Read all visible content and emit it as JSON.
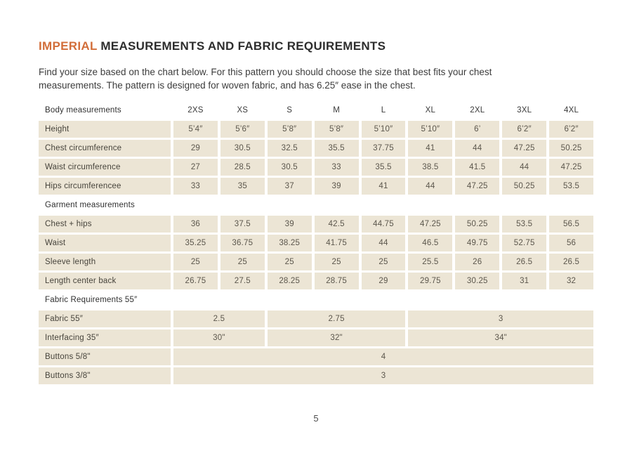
{
  "colors": {
    "accent": "#d26e3a",
    "row_bg": "#ece5d5"
  },
  "page": {
    "title_accent": "IMPERIAL",
    "title_rest": " MEASUREMENTS AND FABRIC REQUIREMENTS",
    "intro": "Find your size based on the chart below. For this pattern you should choose the size that best fits your chest measurements. The pattern is designed for woven fabric, and has 6.25″ ease in the chest.",
    "page_number": "5"
  },
  "table": {
    "sizes": [
      "2XS",
      "XS",
      "S",
      "M",
      "L",
      "XL",
      "2XL",
      "3XL",
      "4XL"
    ],
    "sections": [
      {
        "header": "Body measurements",
        "rows": [
          {
            "label": "Height",
            "cells": [
              {
                "v": "5’4″",
                "s": 1
              },
              {
                "v": "5’6″",
                "s": 1
              },
              {
                "v": "5’8″",
                "s": 1
              },
              {
                "v": "5’8″",
                "s": 1
              },
              {
                "v": "5’10″",
                "s": 1
              },
              {
                "v": "5’10″",
                "s": 1
              },
              {
                "v": "6’",
                "s": 1
              },
              {
                "v": "6’2″",
                "s": 1
              },
              {
                "v": "6’2″",
                "s": 1
              }
            ]
          },
          {
            "label": "Chest circumference",
            "cells": [
              {
                "v": "29",
                "s": 1
              },
              {
                "v": "30.5",
                "s": 1
              },
              {
                "v": "32.5",
                "s": 1
              },
              {
                "v": "35.5",
                "s": 1
              },
              {
                "v": "37.75",
                "s": 1
              },
              {
                "v": "41",
                "s": 1
              },
              {
                "v": "44",
                "s": 1
              },
              {
                "v": "47.25",
                "s": 1
              },
              {
                "v": "50.25",
                "s": 1
              }
            ]
          },
          {
            "label": "Waist circumference",
            "cells": [
              {
                "v": "27",
                "s": 1
              },
              {
                "v": "28.5",
                "s": 1
              },
              {
                "v": "30.5",
                "s": 1
              },
              {
                "v": "33",
                "s": 1
              },
              {
                "v": "35.5",
                "s": 1
              },
              {
                "v": "38.5",
                "s": 1
              },
              {
                "v": "41.5",
                "s": 1
              },
              {
                "v": "44",
                "s": 1
              },
              {
                "v": "47.25",
                "s": 1
              }
            ]
          },
          {
            "label": "Hips circumferencee",
            "cells": [
              {
                "v": "33",
                "s": 1
              },
              {
                "v": "35",
                "s": 1
              },
              {
                "v": "37",
                "s": 1
              },
              {
                "v": "39",
                "s": 1
              },
              {
                "v": "41",
                "s": 1
              },
              {
                "v": "44",
                "s": 1
              },
              {
                "v": "47.25",
                "s": 1
              },
              {
                "v": "50.25",
                "s": 1
              },
              {
                "v": "53.5",
                "s": 1
              }
            ]
          }
        ]
      },
      {
        "header": "Garment measurements",
        "rows": [
          {
            "label": "Chest + hips",
            "cells": [
              {
                "v": "36",
                "s": 1
              },
              {
                "v": "37.5",
                "s": 1
              },
              {
                "v": "39",
                "s": 1
              },
              {
                "v": "42.5",
                "s": 1
              },
              {
                "v": "44.75",
                "s": 1
              },
              {
                "v": "47.25",
                "s": 1
              },
              {
                "v": "50.25",
                "s": 1
              },
              {
                "v": "53.5",
                "s": 1
              },
              {
                "v": "56.5",
                "s": 1
              }
            ]
          },
          {
            "label": "Waist",
            "cells": [
              {
                "v": "35.25",
                "s": 1
              },
              {
                "v": "36.75",
                "s": 1
              },
              {
                "v": "38.25",
                "s": 1
              },
              {
                "v": "41.75",
                "s": 1
              },
              {
                "v": "44",
                "s": 1
              },
              {
                "v": "46.5",
                "s": 1
              },
              {
                "v": "49.75",
                "s": 1
              },
              {
                "v": "52.75",
                "s": 1
              },
              {
                "v": "56",
                "s": 1
              }
            ]
          },
          {
            "label": "Sleeve length",
            "cells": [
              {
                "v": "25",
                "s": 1
              },
              {
                "v": "25",
                "s": 1
              },
              {
                "v": "25",
                "s": 1
              },
              {
                "v": "25",
                "s": 1
              },
              {
                "v": "25",
                "s": 1
              },
              {
                "v": "25.5",
                "s": 1
              },
              {
                "v": "26",
                "s": 1
              },
              {
                "v": "26.5",
                "s": 1
              },
              {
                "v": "26.5",
                "s": 1
              }
            ]
          },
          {
            "label": "Length center back",
            "cells": [
              {
                "v": "26.75",
                "s": 1
              },
              {
                "v": "27.5",
                "s": 1
              },
              {
                "v": "28.25",
                "s": 1
              },
              {
                "v": "28.75",
                "s": 1
              },
              {
                "v": "29",
                "s": 1
              },
              {
                "v": "29.75",
                "s": 1
              },
              {
                "v": "30.25",
                "s": 1
              },
              {
                "v": "31",
                "s": 1
              },
              {
                "v": "32",
                "s": 1
              }
            ]
          }
        ]
      },
      {
        "header": "Fabric Requirements 55″",
        "rows": [
          {
            "label": "Fabric 55″",
            "cells": [
              {
                "v": "2.5",
                "s": 2
              },
              {
                "v": "2.75",
                "s": 3
              },
              {
                "v": "3",
                "s": 4
              }
            ]
          },
          {
            "label": "Interfacing 35″",
            "cells": [
              {
                "v": "30\"",
                "s": 2
              },
              {
                "v": "32\"",
                "s": 3
              },
              {
                "v": "34\"",
                "s": 4
              }
            ]
          },
          {
            "label": "Buttons 5/8\"",
            "cells": [
              {
                "v": "4",
                "s": 9
              }
            ]
          },
          {
            "label": "Buttons 3/8\"",
            "cells": [
              {
                "v": "3",
                "s": 9
              }
            ]
          }
        ]
      }
    ]
  }
}
